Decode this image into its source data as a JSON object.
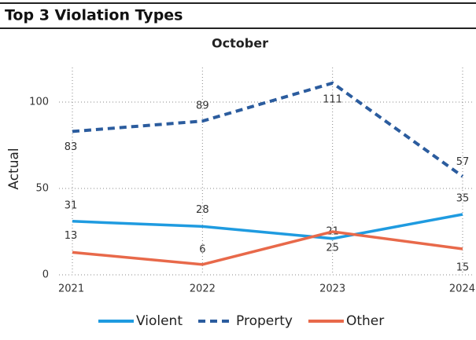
{
  "header": {
    "title": "Top 3 Violation Types"
  },
  "chart_data": {
    "type": "line",
    "title": "October",
    "y_label": "Actual",
    "categories": [
      "2021",
      "2022",
      "2023",
      "2024"
    ],
    "series": [
      {
        "name": "Violent",
        "color": "#1f9be0",
        "dashed": false,
        "values": [
          31,
          28,
          21,
          35
        ]
      },
      {
        "name": "Property",
        "color": "#2b5c9e",
        "dashed": true,
        "values": [
          83,
          89,
          111,
          57
        ]
      },
      {
        "name": "Other",
        "color": "#e8694a",
        "dashed": false,
        "values": [
          13,
          6,
          25,
          15
        ]
      }
    ],
    "ylim": [
      0,
      120
    ],
    "yticks": [
      0,
      50,
      100
    ],
    "grid": true,
    "legend": "bottom"
  }
}
